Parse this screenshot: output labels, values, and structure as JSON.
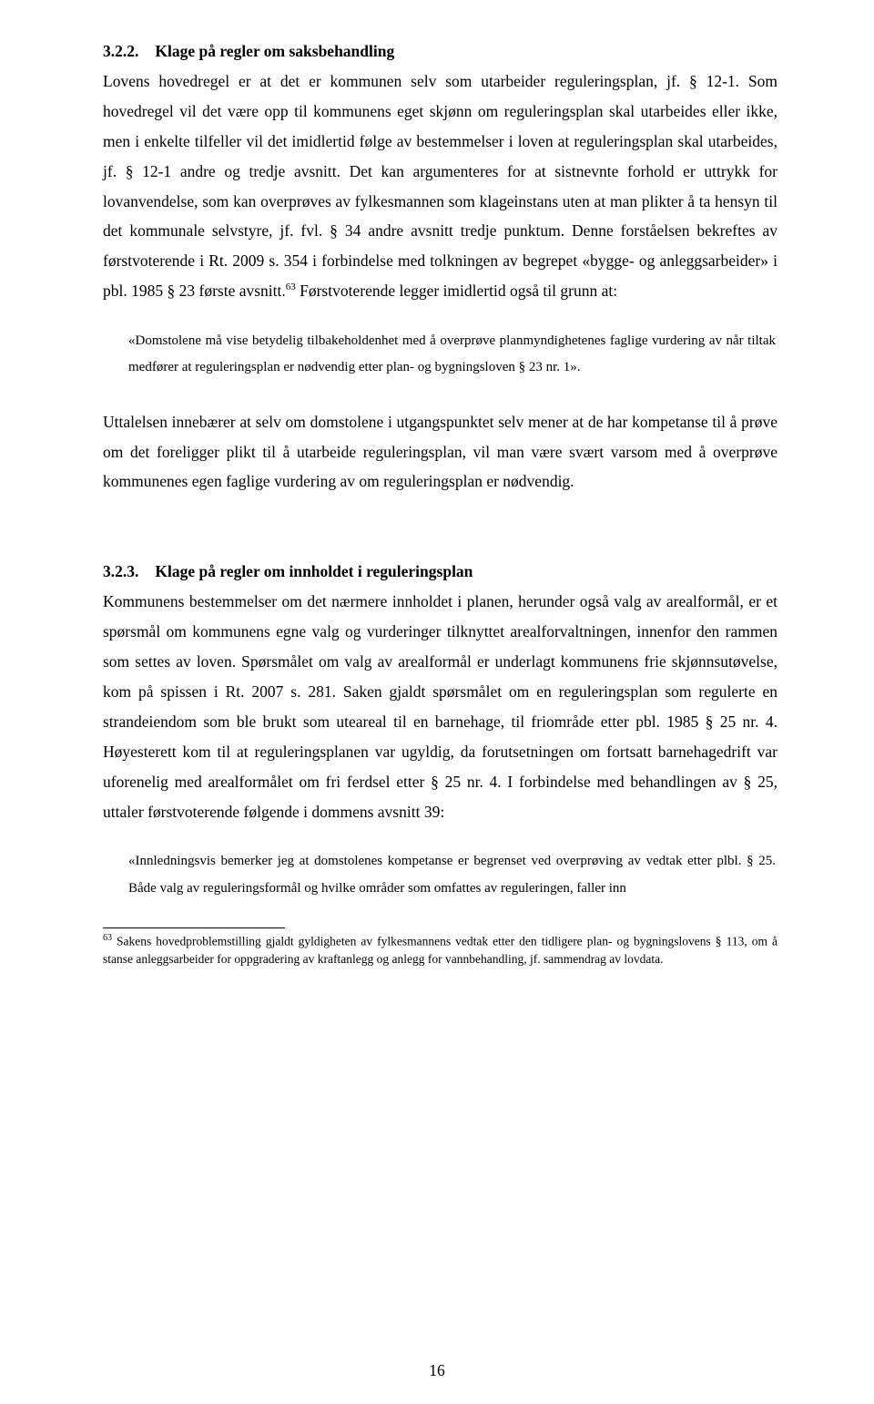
{
  "section1": {
    "heading_num": "3.2.2.",
    "heading_title": "Klage på regler om saksbehandling",
    "para": "Lovens hovedregel er at det er kommunen selv som utarbeider reguleringsplan, jf. § 12-1. Som hovedregel vil det være opp til kommunens eget skjønn om reguleringsplan skal utarbeides eller ikke, men i enkelte tilfeller vil det imidlertid følge av bestemmelser i loven at reguleringsplan skal utarbeides, jf. § 12-1 andre og tredje avsnitt. Det kan argumenteres for at sistnevnte forhold er uttrykk for lovanvendelse, som kan overprøves av fylkesmannen som klageinstans uten at man plikter å ta hensyn til det kommunale selvstyre, jf. fvl. § 34 andre avsnitt tredje punktum. Denne forståelsen bekreftes av førstvoterende i Rt. 2009 s. 354 i forbindelse med tolkningen av begrepet «bygge- og anleggsarbeider» i pbl. 1985 § 23 første avsnitt.",
    "fn_ref": "63",
    "para_tail": " Førstvoterende legger imidlertid også til grunn at:"
  },
  "quote1": "«Domstolene må vise betydelig tilbakeholdenhet med å overprøve planmyndighetenes faglige vurdering av når tiltak medfører at reguleringsplan er nødvendig etter plan- og bygningsloven § 23 nr. 1».",
  "para2": "Uttalelsen innebærer at selv om domstolene i utgangspunktet selv mener at de har kompetanse til å prøve om det foreligger plikt til å utarbeide reguleringsplan, vil man være svært varsom med å overprøve kommunenes egen faglige vurdering av om reguleringsplan er nødvendig.",
  "section2": {
    "heading_num": "3.2.3.",
    "heading_title": "Klage på regler om innholdet i reguleringsplan",
    "para": "Kommunens bestemmelser om det nærmere innholdet i planen, herunder også valg av arealformål, er et spørsmål om kommunens egne valg og vurderinger tilknyttet arealforvaltningen, innenfor den rammen som settes av loven. Spørsmålet om valg av arealformål er underlagt kommunens frie skjønnsutøvelse, kom på spissen i Rt. 2007 s. 281. Saken gjaldt spørsmålet om en reguleringsplan som regulerte en strandeiendom som ble brukt som uteareal til en barnehage, til friområde etter pbl. 1985 § 25 nr. 4. Høyesterett kom til at reguleringsplanen var ugyldig, da forutsetningen om fortsatt barnehagedrift var uforenelig med arealformålet om fri ferdsel etter § 25 nr. 4. I forbindelse med behandlingen av § 25, uttaler førstvoterende følgende i dommens avsnitt 39:"
  },
  "quote2": "«Innledningsvis bemerker jeg at domstolenes kompetanse er begrenset ved overprøving av vedtak etter plbl. § 25. Både valg av reguleringsformål og hvilke områder som omfattes av reguleringen, faller inn",
  "footnote": {
    "num": "63",
    "text": " Sakens hovedproblemstilling gjaldt gyldigheten av fylkesmannens vedtak etter den tidligere plan- og bygningslovens § 113, om å stanse anleggsarbeider for oppgradering av kraftanlegg og anlegg for vannbehandling, jf. sammendrag av lovdata."
  },
  "page_number": "16"
}
